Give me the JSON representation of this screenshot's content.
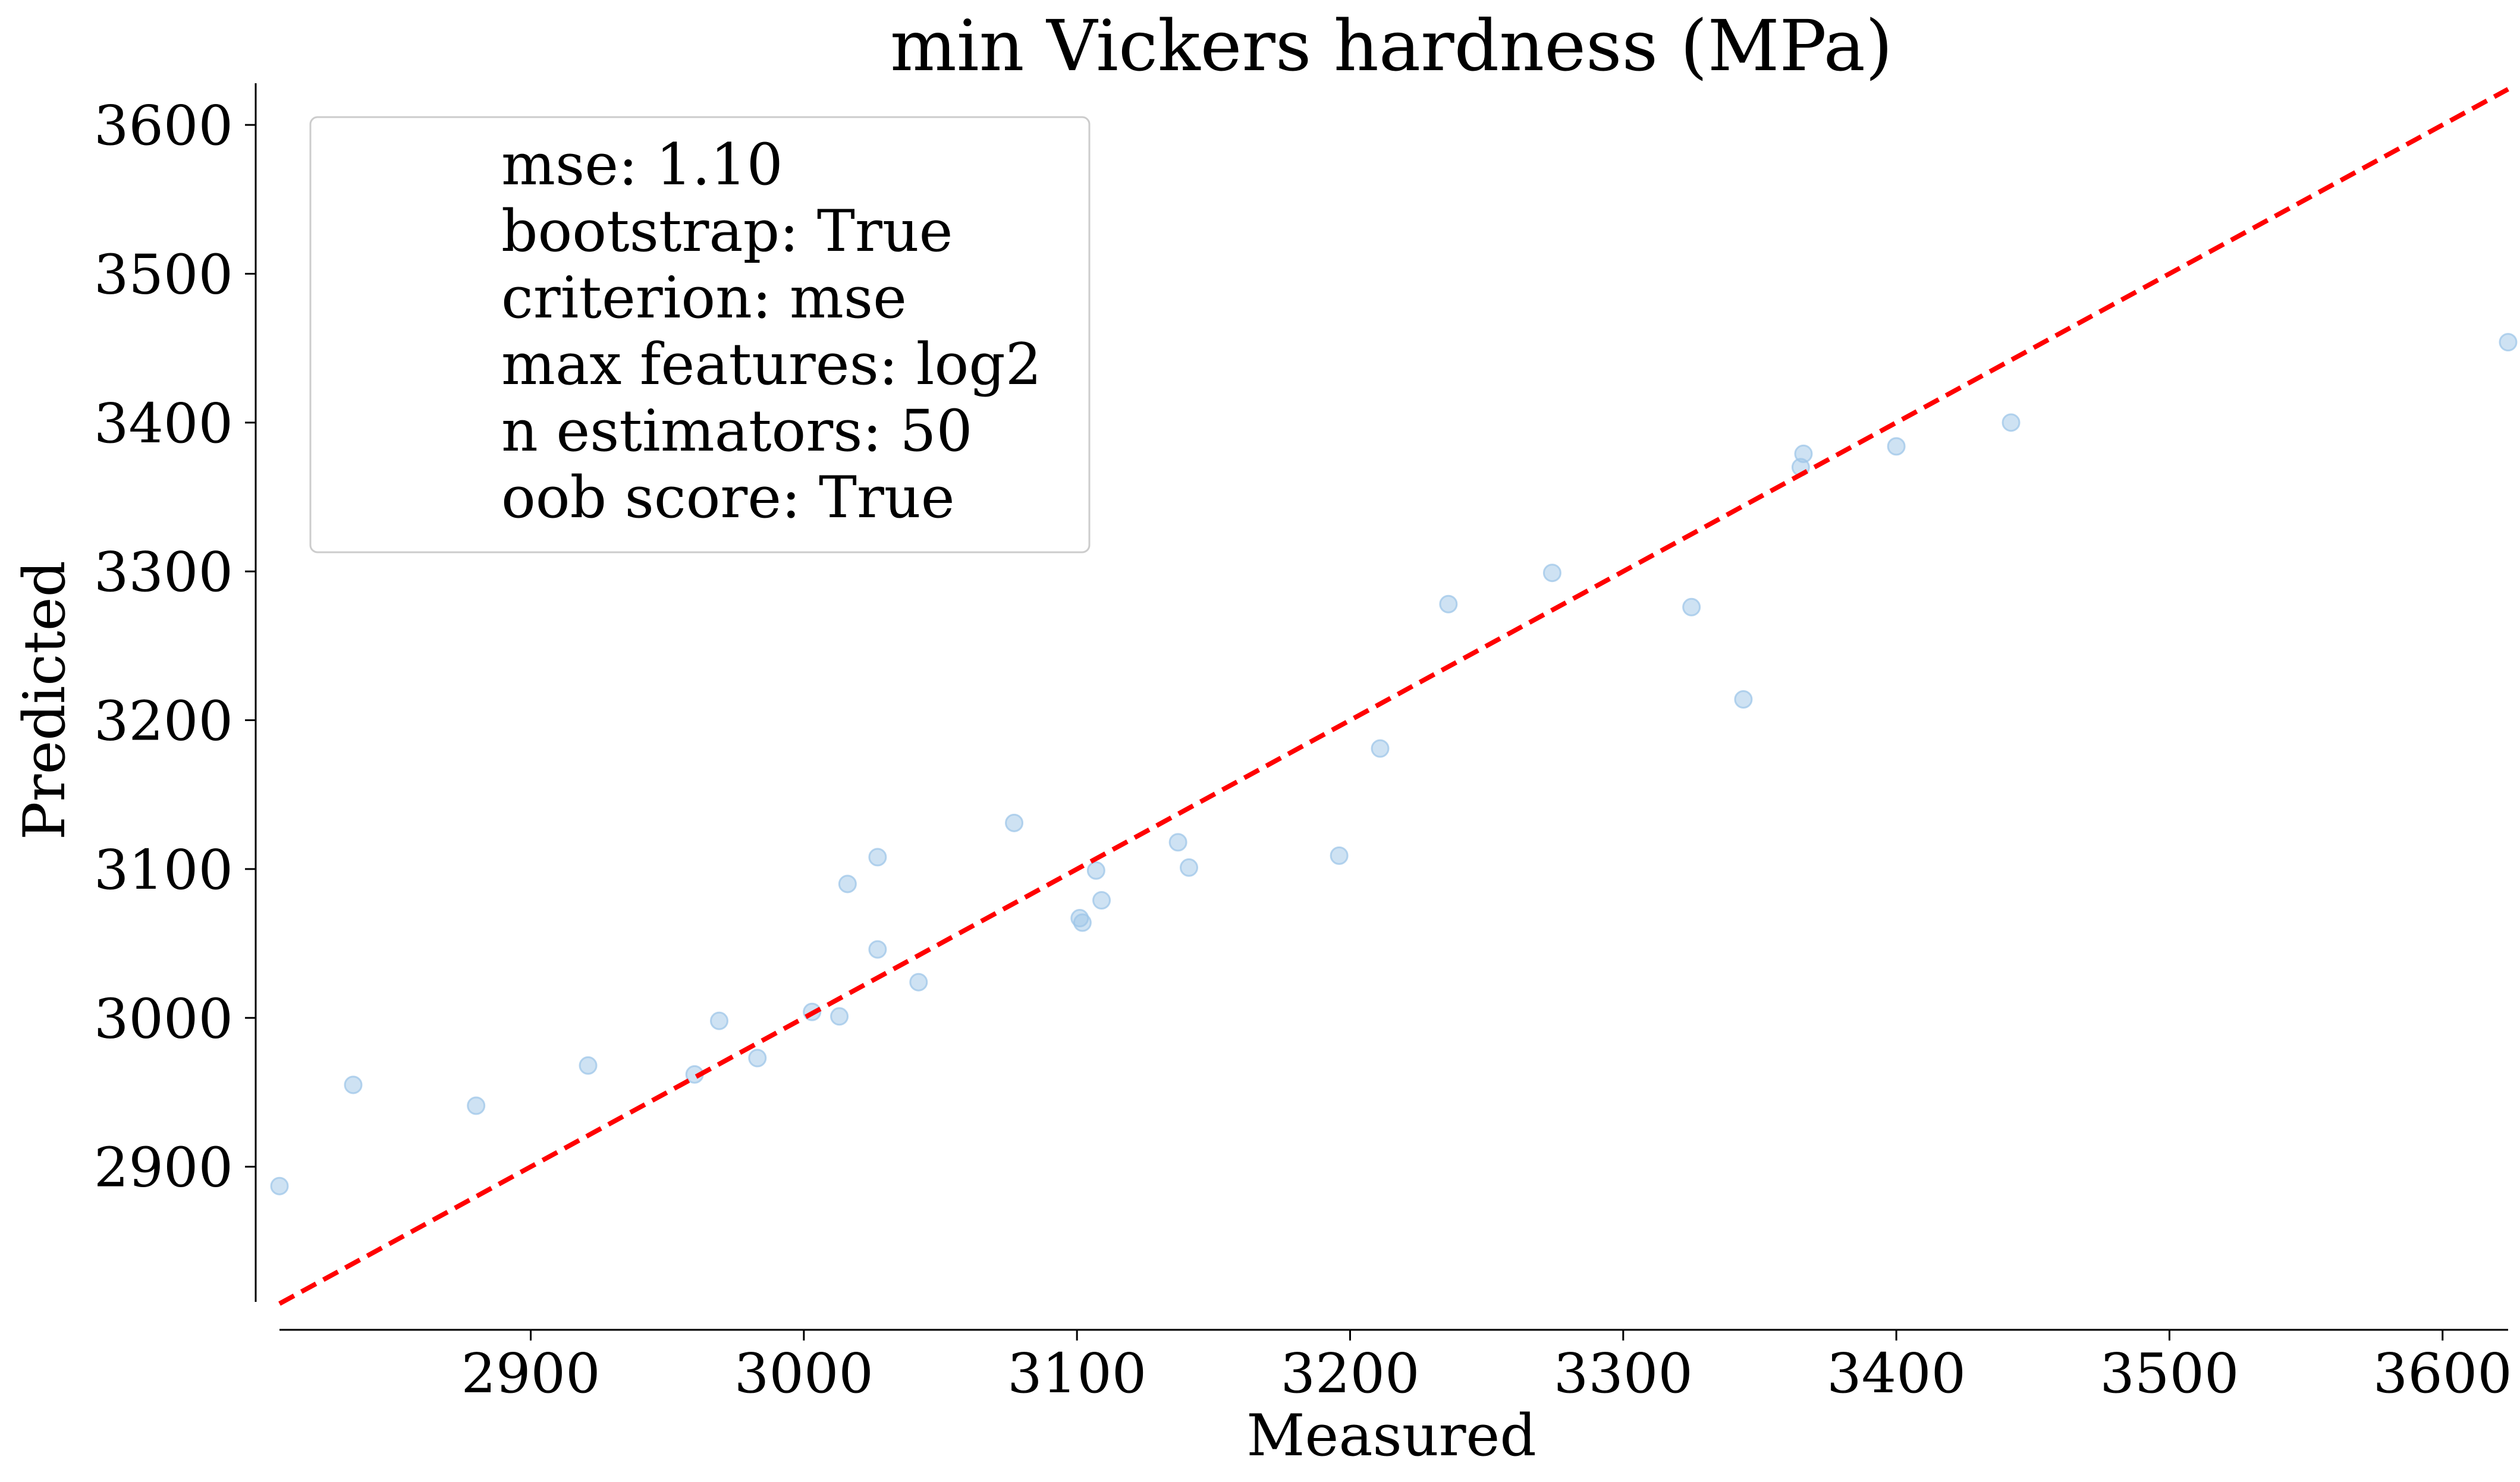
{
  "chart_data": {
    "type": "scatter",
    "title": "min Vickers hardness (MPa)",
    "xlabel": "Measured",
    "ylabel": "Predicted",
    "xlim": [
      2808,
      3624
    ],
    "ylim": [
      2808,
      3624
    ],
    "xticks": [
      2900,
      3000,
      3100,
      3200,
      3300,
      3400,
      3500,
      3600
    ],
    "yticks": [
      2900,
      3000,
      3100,
      3200,
      3300,
      3400,
      3500,
      3600
    ],
    "grid": false,
    "legend_position": "top-left",
    "legend_lines": [
      "mse: 1.10",
      "bootstrap: True",
      "criterion: mse",
      "max features: log2",
      "n estimators: 50",
      "oob score: True"
    ],
    "reference_line": {
      "style": "dashed",
      "color": "#ff0000",
      "from": [
        2808,
        2808
      ],
      "to": [
        3624,
        3624
      ]
    },
    "point_color": "#9ec5e8",
    "points": [
      {
        "x": 2808,
        "y": 2887
      },
      {
        "x": 2835,
        "y": 2955
      },
      {
        "x": 2880,
        "y": 2941
      },
      {
        "x": 2921,
        "y": 2968
      },
      {
        "x": 2960,
        "y": 2962
      },
      {
        "x": 2969,
        "y": 2998
      },
      {
        "x": 2983,
        "y": 2973
      },
      {
        "x": 3003,
        "y": 3004
      },
      {
        "x": 3013,
        "y": 3001
      },
      {
        "x": 3016,
        "y": 3090
      },
      {
        "x": 3027,
        "y": 3108
      },
      {
        "x": 3027,
        "y": 3046
      },
      {
        "x": 3042,
        "y": 3024
      },
      {
        "x": 3077,
        "y": 3131
      },
      {
        "x": 3101,
        "y": 3067
      },
      {
        "x": 3102,
        "y": 3064
      },
      {
        "x": 3107,
        "y": 3099
      },
      {
        "x": 3109,
        "y": 3079
      },
      {
        "x": 3137,
        "y": 3118
      },
      {
        "x": 3141,
        "y": 3101
      },
      {
        "x": 3196,
        "y": 3109
      },
      {
        "x": 3211,
        "y": 3181
      },
      {
        "x": 3236,
        "y": 3278
      },
      {
        "x": 3274,
        "y": 3299
      },
      {
        "x": 3325,
        "y": 3276
      },
      {
        "x": 3344,
        "y": 3214
      },
      {
        "x": 3365,
        "y": 3370
      },
      {
        "x": 3366,
        "y": 3379
      },
      {
        "x": 3400,
        "y": 3384
      },
      {
        "x": 3442,
        "y": 3400
      },
      {
        "x": 3624,
        "y": 3454
      }
    ]
  }
}
